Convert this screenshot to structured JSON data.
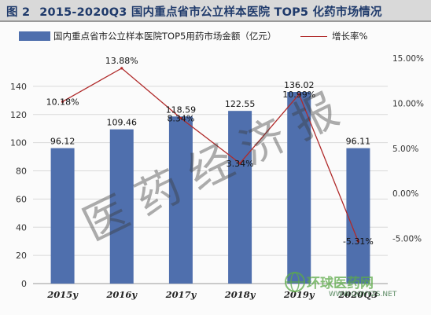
{
  "title": {
    "prefix": "图 2",
    "text": "2015-2020Q3 国内重点省市公立样本医院 TOP5 化药市场情况"
  },
  "legend": {
    "bar_label": "国内重点省市公立样本医院TOP5用药市场金额（亿元）",
    "line_label": "增长率%"
  },
  "watermark": "医药经济报",
  "logo": {
    "text": "环球医药网",
    "url": "WWW.QQYYZS.NET"
  },
  "chart_data": {
    "type": "bar",
    "categories": [
      "2015y",
      "2016y",
      "2017y",
      "2018y",
      "2019y",
      "2020Q3"
    ],
    "series": [
      {
        "name": "国内重点省市公立样本医院TOP5用药市场金额（亿元）",
        "type": "bar",
        "values": [
          96.12,
          109.46,
          118.59,
          122.55,
          136.02,
          96.11
        ],
        "labels": [
          "96.12",
          "109.46",
          "118.59",
          "122.55",
          "136.02",
          "96.11"
        ],
        "color": "#4f6fad"
      },
      {
        "name": "增长率%",
        "type": "line",
        "values": [
          10.18,
          13.88,
          8.34,
          3.34,
          10.99,
          -5.31
        ],
        "labels": [
          "10.18%",
          "13.88%",
          "8.34%",
          "3.34%",
          "10.99%",
          "-5.31%"
        ],
        "color": "#b02a2a"
      }
    ],
    "y_left": {
      "ylim": [
        0,
        160
      ],
      "ticks": [
        "0",
        "20",
        "40",
        "60",
        "80",
        "100",
        "120",
        "140"
      ],
      "tick_values": [
        0,
        20,
        40,
        60,
        80,
        100,
        120,
        140
      ]
    },
    "y_right": {
      "ylim": [
        -10,
        15
      ],
      "ticks": [
        "-5.00%",
        "0.00%",
        "5.00%",
        "10.00%",
        "15.00%"
      ],
      "tick_values": [
        -5,
        0,
        5,
        10,
        15
      ]
    },
    "grid": true,
    "legend_position": "top"
  }
}
